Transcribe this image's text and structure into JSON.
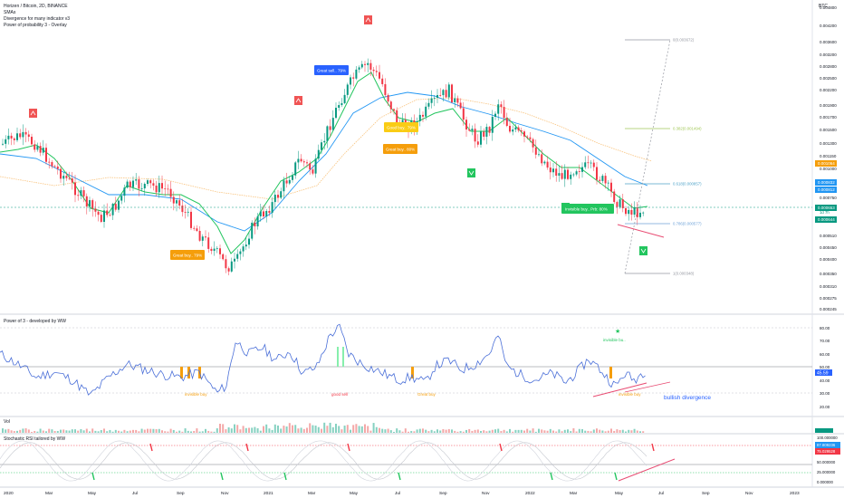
{
  "header": {
    "symbol_line": "Horizen / Bitcoin, 2D, BINANCE",
    "indicators": [
      "SMAs",
      "Divergence for many indicator v3",
      "Power of probability 3 - Overlay"
    ]
  },
  "price_axis": {
    "currency": "BTC",
    "ticks": [
      "0.004800",
      "0.004200",
      "0.003600",
      "0.003200",
      "0.002800",
      "0.002500",
      "0.002200",
      "0.001900",
      "0.001700",
      "0.001500",
      "0.001300",
      "0.001150",
      "0.001000",
      "0.000750",
      "0.000640",
      "0.000510",
      "0.000450",
      "0.000400",
      "0.000350",
      "0.000310",
      "0.000275",
      "0.000245"
    ],
    "badges": [
      {
        "label": "0.001064",
        "color": "#f59e0b"
      },
      {
        "label": "0.000832",
        "color": "#2196f3"
      },
      {
        "label": "0.000812",
        "color": "#2196f3"
      },
      {
        "label": "0.000653",
        "color": "#089981"
      },
      {
        "label": "1d 7h",
        "color": "#089981"
      },
      {
        "label": "0.000644",
        "color": "#089981"
      }
    ]
  },
  "fib_levels": [
    {
      "label": "0(0.003672)"
    },
    {
      "label": "0.382(0.001494)"
    },
    {
      "label": "0.618(0.000857)"
    },
    {
      "label": "0.786(0.000577)"
    },
    {
      "label": "1(0.000348)"
    }
  ],
  "annotations": {
    "great_sell": "Great sell.. 79%",
    "great_buy_1": "Great buy.. 79%",
    "good_buy": "Good buy.. 79%",
    "great_buy_2": "Great buy.. 80%",
    "invisible_buy": "Invisible buy.. Prb: 80%"
  },
  "pane_power": {
    "title": "Power of 3 - developed by WW",
    "ticks": [
      "80.00",
      "70.00",
      "60.00",
      "50.00",
      "40.00",
      "30.00",
      "20.00"
    ],
    "value_badge": "45.59",
    "labels": {
      "invisible_buy_top": "invisible bu..",
      "invisible_buy_left": "invisible buy",
      "good_sell": "good sell",
      "great_buy": "Great buy",
      "invisible_buy_bottom": "invisible buy",
      "bullish_divergence": "bullish divergence"
    }
  },
  "pane_vol": {
    "title": "Vol"
  },
  "pane_stoch": {
    "title": "Stochastic RSI tailored by WW",
    "ticks": [
      "100.000000",
      "50.000000",
      "25.000000",
      "0.000000"
    ],
    "badges": [
      {
        "label": "87.809236",
        "color": "#2196f3"
      },
      {
        "label": "75.029528",
        "color": "#f23645"
      }
    ]
  },
  "time_axis": [
    "2020",
    "Mar",
    "May",
    "Jul",
    "Sep",
    "Nov",
    "2021",
    "Mar",
    "May",
    "Jul",
    "Sep",
    "Nov",
    "2022",
    "Mar",
    "May",
    "Jul",
    "Sep",
    "Nov",
    "2023"
  ],
  "chart_data": {
    "type": "line",
    "title": "Horizen / Bitcoin, 2D, BINANCE",
    "x": [
      "2020-01",
      "2020-03",
      "2020-05",
      "2020-07",
      "2020-09",
      "2020-11",
      "2021-01",
      "2021-03",
      "2021-05",
      "2021-07",
      "2021-09",
      "2021-11",
      "2022-01",
      "2022-03",
      "2022-05",
      "2022-06"
    ],
    "series": [
      {
        "name": "Horizen / Bitcoin",
        "values": [
          0.00098,
          0.00105,
          0.00068,
          0.00082,
          0.00072,
          0.0004,
          0.00095,
          0.0015,
          0.0033,
          0.00175,
          0.002,
          0.0019,
          0.00125,
          0.001,
          0.00068,
          0.00065
        ]
      },
      {
        "name": "Power of 3",
        "values": [
          45,
          55,
          35,
          45,
          40,
          28,
          65,
          55,
          70,
          45,
          50,
          55,
          45,
          50,
          35,
          46
        ]
      },
      {
        "name": "Stochastic RSI",
        "values": [
          60,
          40,
          10,
          70,
          30,
          10,
          90,
          60,
          85,
          30,
          50,
          60,
          30,
          40,
          20,
          88
        ]
      }
    ],
    "price_last": 0.000653,
    "power_last": 45.59,
    "stoch_k_last": 87.809236,
    "stoch_d_last": 75.029528,
    "y_scale": "log",
    "ylim": [
      0.000245,
      0.0048
    ]
  }
}
